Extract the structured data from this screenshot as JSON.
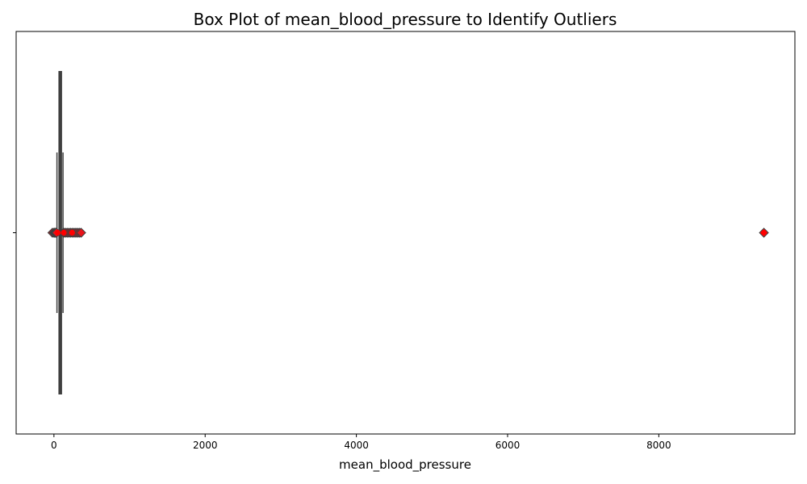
{
  "chart_data": {
    "type": "box",
    "title": "Box Plot of mean_blood_pressure to Identify Outliers",
    "xlabel": "mean_blood_pressure",
    "ylabel": "",
    "xlim": [
      -500,
      9800
    ],
    "xticks": [
      0,
      2000,
      4000,
      6000,
      8000
    ],
    "orientation": "horizontal",
    "grid": false,
    "box": {
      "whisker_low": 40,
      "q1": 70,
      "median": 80,
      "q3": 90,
      "whisker_high": 120
    },
    "outliers": [
      -20,
      0,
      10,
      20,
      30,
      35,
      125,
      140,
      160,
      180,
      200,
      220,
      240,
      260,
      280,
      300,
      320,
      340,
      360,
      9390
    ],
    "means": [
      50,
      130,
      240,
      9390
    ],
    "colors": {
      "box_edge": "#3f3f3f",
      "outlier_fill": "#e8141a",
      "outlier_edge": "#3f3f3f",
      "mean_marker": "#ff0000"
    }
  }
}
